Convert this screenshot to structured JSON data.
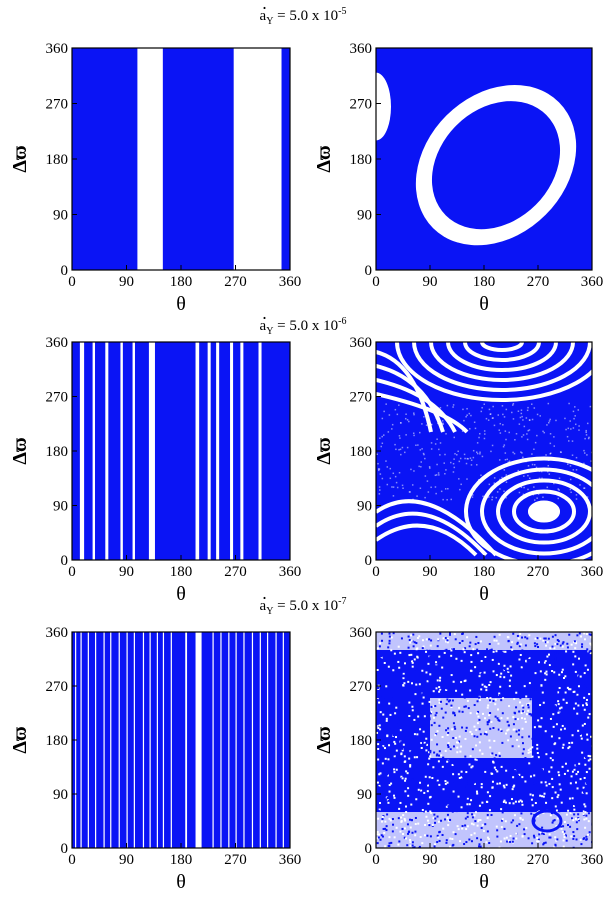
{
  "row_titles": [
    {
      "var": "a",
      "sub": "Y",
      "eq": " = 5.0 x 10",
      "exp": "-5"
    },
    {
      "var": "a",
      "sub": "Y",
      "eq": " = 5.0 x 10",
      "exp": "-6"
    },
    {
      "var": "a",
      "sub": "Y",
      "eq": " = 5.0 x 10",
      "exp": "-7"
    }
  ],
  "colors": {
    "fill": "#0a14f5",
    "background": "#ffffff",
    "axis": "#000000"
  },
  "chart_data": [
    {
      "type": "heatmap",
      "panel": "row1-left",
      "xlabel": "θ",
      "ylabel": "Δϖ",
      "xlim": [
        0,
        360
      ],
      "ylim": [
        0,
        360
      ],
      "xticks": [
        0,
        90,
        180,
        270,
        360
      ],
      "yticks": [
        0,
        90,
        180,
        270,
        360
      ],
      "white_bands_theta": [
        [
          108,
          150
        ],
        [
          267,
          346
        ]
      ]
    },
    {
      "type": "heatmap",
      "panel": "row1-right",
      "xlabel": "θ",
      "ylabel": "Δϖ",
      "xlim": [
        0,
        360
      ],
      "ylim": [
        0,
        360
      ],
      "xticks": [
        0,
        90,
        180,
        270,
        360
      ],
      "yticks": [
        0,
        90,
        180,
        270,
        360
      ],
      "white_ring": {
        "center": [
          200,
          170
        ],
        "outer_radii": [
          150,
          185
        ],
        "inner_radii": [
          130,
          160
        ],
        "tilt_deg": 45
      },
      "white_corner_region": {
        "theta": [
          0,
          25
        ],
        "dw": [
          210,
          320
        ]
      }
    },
    {
      "type": "heatmap",
      "panel": "row2-left",
      "xlabel": "θ",
      "ylabel": "Δϖ",
      "xlim": [
        0,
        360
      ],
      "ylim": [
        0,
        360
      ],
      "xticks": [
        0,
        90,
        180,
        270,
        360
      ],
      "yticks": [
        0,
        90,
        180,
        270,
        360
      ],
      "white_bands_theta": [
        [
          13,
          20
        ],
        [
          34,
          38
        ],
        [
          55,
          60
        ],
        [
          80,
          84
        ],
        [
          100,
          104
        ],
        [
          127,
          137
        ],
        [
          204,
          210
        ],
        [
          224,
          229
        ],
        [
          238,
          243
        ],
        [
          261,
          266
        ],
        [
          278,
          283
        ],
        [
          308,
          313
        ]
      ]
    },
    {
      "type": "heatmap",
      "panel": "row2-right",
      "xlabel": "θ",
      "ylabel": "Δϖ",
      "xlim": [
        0,
        360
      ],
      "ylim": [
        0,
        360
      ],
      "xticks": [
        0,
        90,
        180,
        270,
        360
      ],
      "yticks": [
        0,
        90,
        180,
        270,
        360
      ],
      "white_arcs_upper": {
        "center": [
          210,
          360
        ],
        "count": 6,
        "dw_range": [
          260,
          360
        ]
      },
      "white_arcs_lower": {
        "center": [
          280,
          80
        ],
        "count": 5,
        "dw_range": [
          0,
          120
        ]
      }
    },
    {
      "type": "heatmap",
      "panel": "row3-left",
      "xlabel": "θ",
      "ylabel": "Δϖ",
      "xlim": [
        0,
        360
      ],
      "ylim": [
        0,
        360
      ],
      "xticks": [
        0,
        90,
        180,
        270,
        360
      ],
      "yticks": [
        0,
        90,
        180,
        270,
        360
      ],
      "white_bands_theta": [
        [
          5,
          7
        ],
        [
          14,
          16
        ],
        [
          26,
          28
        ],
        [
          38,
          40
        ],
        [
          52,
          54
        ],
        [
          63,
          65
        ],
        [
          77,
          79
        ],
        [
          90,
          92
        ],
        [
          102,
          104
        ],
        [
          117,
          119
        ],
        [
          128,
          130
        ],
        [
          140,
          142
        ],
        [
          150,
          152
        ],
        [
          163,
          165
        ],
        [
          187,
          190
        ],
        [
          204,
          214
        ],
        [
          232,
          234
        ],
        [
          245,
          247
        ],
        [
          258,
          260
        ],
        [
          270,
          272
        ],
        [
          283,
          285
        ],
        [
          297,
          299
        ],
        [
          310,
          312
        ],
        [
          322,
          324
        ],
        [
          336,
          338
        ],
        [
          348,
          350
        ]
      ]
    },
    {
      "type": "scatter",
      "panel": "row3-right",
      "xlabel": "θ",
      "ylabel": "Δϖ",
      "xlim": [
        0,
        360
      ],
      "ylim": [
        0,
        360
      ],
      "xticks": [
        0,
        90,
        180,
        270,
        360
      ],
      "yticks": [
        0,
        90,
        180,
        270,
        360
      ],
      "white_regions": [
        {
          "theta": [
            0,
            360
          ],
          "dw": [
            330,
            360
          ]
        },
        {
          "theta": [
            0,
            360
          ],
          "dw": [
            0,
            60
          ]
        },
        {
          "theta": [
            90,
            260
          ],
          "dw": [
            150,
            250
          ]
        }
      ]
    }
  ]
}
